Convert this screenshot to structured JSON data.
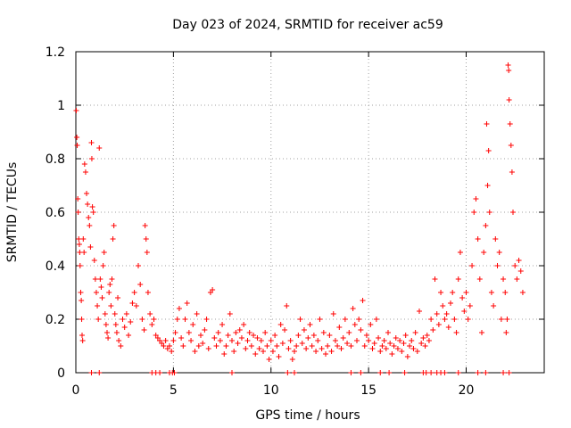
{
  "chart_data": {
    "type": "scatter",
    "title": "Day 023 of 2024, SRMTID for receiver ac59",
    "xlabel": "GPS time / hours",
    "ylabel": "SRMTID / TECUs",
    "xlim": [
      0,
      24
    ],
    "ylim": [
      0,
      1.2
    ],
    "xticks": [
      0,
      5,
      10,
      15,
      20
    ],
    "xtick_labels": [
      "0",
      "5",
      "10",
      "15",
      "20"
    ],
    "yticks": [
      0,
      0.2,
      0.4,
      0.6,
      0.8,
      1.0,
      1.2
    ],
    "ytick_labels": [
      "0",
      "0.2",
      "0.4",
      "0.6",
      "0.8",
      "1",
      "1.2"
    ],
    "grid": true,
    "marker": "+",
    "series": [
      {
        "name": "SRMTID",
        "color": "#ff0000",
        "points": [
          [
            0.02,
            0.98
          ],
          [
            0.05,
            0.88
          ],
          [
            0.07,
            0.85
          ],
          [
            0.1,
            0.65
          ],
          [
            0.12,
            0.6
          ],
          [
            0.15,
            0.5
          ],
          [
            0.18,
            0.48
          ],
          [
            0.2,
            0.45
          ],
          [
            0.22,
            0.4
          ],
          [
            0.25,
            0.3
          ],
          [
            0.28,
            0.27
          ],
          [
            0.3,
            0.2
          ],
          [
            0.32,
            0.14
          ],
          [
            0.35,
            0.12
          ],
          [
            0.38,
            0.5
          ],
          [
            0.42,
            0.45
          ],
          [
            0.45,
            0.78
          ],
          [
            0.5,
            0.75
          ],
          [
            0.55,
            0.67
          ],
          [
            0.6,
            0.63
          ],
          [
            0.65,
            0.58
          ],
          [
            0.7,
            0.55
          ],
          [
            0.75,
            0.47
          ],
          [
            0.8,
            0.86
          ],
          [
            0.82,
            0.8
          ],
          [
            0.85,
            0.62
          ],
          [
            0.9,
            0.6
          ],
          [
            0.95,
            0.42
          ],
          [
            1.0,
            0.35
          ],
          [
            1.05,
            0.3
          ],
          [
            1.1,
            0.25
          ],
          [
            1.15,
            0.2
          ],
          [
            1.2,
            0.84
          ],
          [
            1.25,
            0.35
          ],
          [
            1.3,
            0.32
          ],
          [
            1.35,
            0.28
          ],
          [
            1.4,
            0.4
          ],
          [
            1.45,
            0.45
          ],
          [
            1.5,
            0.22
          ],
          [
            1.55,
            0.18
          ],
          [
            1.6,
            0.15
          ],
          [
            1.65,
            0.13
          ],
          [
            1.7,
            0.3
          ],
          [
            1.75,
            0.33
          ],
          [
            1.8,
            0.25
          ],
          [
            1.85,
            0.35
          ],
          [
            1.9,
            0.5
          ],
          [
            1.95,
            0.55
          ],
          [
            2.0,
            0.22
          ],
          [
            2.05,
            0.18
          ],
          [
            2.1,
            0.15
          ],
          [
            2.15,
            0.28
          ],
          [
            2.2,
            0.12
          ],
          [
            2.3,
            0.1
          ],
          [
            2.4,
            0.2
          ],
          [
            2.5,
            0.17
          ],
          [
            2.6,
            0.22
          ],
          [
            2.7,
            0.14
          ],
          [
            2.8,
            0.19
          ],
          [
            2.9,
            0.26
          ],
          [
            3.0,
            0.3
          ],
          [
            3.1,
            0.25
          ],
          [
            3.2,
            0.4
          ],
          [
            3.3,
            0.33
          ],
          [
            3.4,
            0.2
          ],
          [
            3.5,
            0.16
          ],
          [
            3.55,
            0.55
          ],
          [
            3.6,
            0.5
          ],
          [
            3.65,
            0.45
          ],
          [
            3.7,
            0.3
          ],
          [
            3.8,
            0.22
          ],
          [
            3.9,
            0.18
          ],
          [
            4.0,
            0.2
          ],
          [
            4.1,
            0.14
          ],
          [
            4.2,
            0.13
          ],
          [
            4.3,
            0.12
          ],
          [
            4.4,
            0.11
          ],
          [
            4.5,
            0.1
          ],
          [
            4.6,
            0.12
          ],
          [
            4.7,
            0.09
          ],
          [
            4.8,
            0.1
          ],
          [
            4.9,
            0.08
          ],
          [
            5.0,
            0.12
          ],
          [
            5.1,
            0.15
          ],
          [
            5.2,
            0.2
          ],
          [
            5.3,
            0.24
          ],
          [
            5.4,
            0.13
          ],
          [
            5.5,
            0.1
          ],
          [
            5.6,
            0.2
          ],
          [
            5.7,
            0.26
          ],
          [
            5.8,
            0.15
          ],
          [
            5.9,
            0.12
          ],
          [
            6.0,
            0.18
          ],
          [
            6.1,
            0.08
          ],
          [
            6.2,
            0.22
          ],
          [
            6.3,
            0.1
          ],
          [
            6.4,
            0.14
          ],
          [
            6.5,
            0.11
          ],
          [
            6.6,
            0.16
          ],
          [
            6.7,
            0.2
          ],
          [
            6.8,
            0.09
          ],
          [
            6.9,
            0.3
          ],
          [
            7.0,
            0.31
          ],
          [
            7.1,
            0.13
          ],
          [
            7.2,
            0.1
          ],
          [
            7.3,
            0.15
          ],
          [
            7.4,
            0.12
          ],
          [
            7.5,
            0.18
          ],
          [
            7.6,
            0.07
          ],
          [
            7.7,
            0.1
          ],
          [
            7.8,
            0.14
          ],
          [
            7.9,
            0.22
          ],
          [
            8.0,
            0.12
          ],
          [
            8.1,
            0.08
          ],
          [
            8.2,
            0.15
          ],
          [
            8.3,
            0.11
          ],
          [
            8.4,
            0.16
          ],
          [
            8.5,
            0.13
          ],
          [
            8.6,
            0.18
          ],
          [
            8.7,
            0.09
          ],
          [
            8.8,
            0.12
          ],
          [
            8.9,
            0.15
          ],
          [
            9.0,
            0.1
          ],
          [
            9.1,
            0.14
          ],
          [
            9.2,
            0.07
          ],
          [
            9.3,
            0.13
          ],
          [
            9.4,
            0.09
          ],
          [
            9.5,
            0.12
          ],
          [
            9.6,
            0.08
          ],
          [
            9.7,
            0.15
          ],
          [
            9.8,
            0.1
          ],
          [
            9.9,
            0.05
          ],
          [
            10.0,
            0.12
          ],
          [
            10.1,
            0.08
          ],
          [
            10.2,
            0.14
          ],
          [
            10.3,
            0.1
          ],
          [
            10.4,
            0.06
          ],
          [
            10.5,
            0.18
          ],
          [
            10.6,
            0.11
          ],
          [
            10.7,
            0.16
          ],
          [
            10.8,
            0.25
          ],
          [
            10.9,
            0.09
          ],
          [
            11.0,
            0.12
          ],
          [
            11.1,
            0.05
          ],
          [
            11.2,
            0.08
          ],
          [
            11.3,
            0.1
          ],
          [
            11.4,
            0.14
          ],
          [
            11.5,
            0.2
          ],
          [
            11.6,
            0.11
          ],
          [
            11.7,
            0.16
          ],
          [
            11.8,
            0.09
          ],
          [
            11.9,
            0.13
          ],
          [
            12.0,
            0.18
          ],
          [
            12.1,
            0.1
          ],
          [
            12.2,
            0.14
          ],
          [
            12.3,
            0.08
          ],
          [
            12.4,
            0.12
          ],
          [
            12.5,
            0.2
          ],
          [
            12.6,
            0.09
          ],
          [
            12.7,
            0.15
          ],
          [
            12.8,
            0.07
          ],
          [
            12.9,
            0.1
          ],
          [
            13.0,
            0.14
          ],
          [
            13.1,
            0.08
          ],
          [
            13.2,
            0.22
          ],
          [
            13.3,
            0.12
          ],
          [
            13.4,
            0.1
          ],
          [
            13.5,
            0.17
          ],
          [
            13.6,
            0.09
          ],
          [
            13.7,
            0.13
          ],
          [
            13.8,
            0.2
          ],
          [
            13.9,
            0.11
          ],
          [
            14.0,
            0.15
          ],
          [
            14.1,
            0.1
          ],
          [
            14.2,
            0.24
          ],
          [
            14.3,
            0.18
          ],
          [
            14.4,
            0.12
          ],
          [
            14.5,
            0.2
          ],
          [
            14.6,
            0.16
          ],
          [
            14.7,
            0.27
          ],
          [
            14.8,
            0.1
          ],
          [
            14.9,
            0.14
          ],
          [
            15.0,
            0.12
          ],
          [
            15.1,
            0.18
          ],
          [
            15.2,
            0.09
          ],
          [
            15.3,
            0.11
          ],
          [
            15.4,
            0.2
          ],
          [
            15.5,
            0.13
          ],
          [
            15.6,
            0.08
          ],
          [
            15.7,
            0.1
          ],
          [
            15.8,
            0.12
          ],
          [
            15.9,
            0.09
          ],
          [
            16.0,
            0.15
          ],
          [
            16.1,
            0.11
          ],
          [
            16.2,
            0.07
          ],
          [
            16.3,
            0.1
          ],
          [
            16.4,
            0.13
          ],
          [
            16.5,
            0.09
          ],
          [
            16.6,
            0.12
          ],
          [
            16.7,
            0.08
          ],
          [
            16.8,
            0.11
          ],
          [
            16.9,
            0.14
          ],
          [
            17.0,
            0.06
          ],
          [
            17.1,
            0.1
          ],
          [
            17.2,
            0.12
          ],
          [
            17.3,
            0.09
          ],
          [
            17.4,
            0.15
          ],
          [
            17.5,
            0.08
          ],
          [
            17.6,
            0.23
          ],
          [
            17.7,
            0.11
          ],
          [
            17.8,
            0.13
          ],
          [
            17.9,
            0.1
          ],
          [
            18.0,
            0.14
          ],
          [
            18.1,
            0.12
          ],
          [
            18.2,
            0.2
          ],
          [
            18.3,
            0.16
          ],
          [
            18.4,
            0.35
          ],
          [
            18.5,
            0.22
          ],
          [
            18.6,
            0.18
          ],
          [
            18.7,
            0.3
          ],
          [
            18.8,
            0.25
          ],
          [
            18.9,
            0.2
          ],
          [
            19.0,
            0.22
          ],
          [
            19.1,
            0.17
          ],
          [
            19.2,
            0.26
          ],
          [
            19.3,
            0.3
          ],
          [
            19.4,
            0.2
          ],
          [
            19.5,
            0.15
          ],
          [
            19.6,
            0.35
          ],
          [
            19.7,
            0.45
          ],
          [
            19.8,
            0.28
          ],
          [
            19.9,
            0.23
          ],
          [
            20.0,
            0.3
          ],
          [
            20.1,
            0.2
          ],
          [
            20.2,
            0.25
          ],
          [
            20.3,
            0.4
          ],
          [
            20.4,
            0.6
          ],
          [
            20.5,
            0.65
          ],
          [
            20.6,
            0.5
          ],
          [
            20.7,
            0.35
          ],
          [
            20.8,
            0.15
          ],
          [
            20.9,
            0.45
          ],
          [
            21.0,
            0.55
          ],
          [
            21.05,
            0.93
          ],
          [
            21.1,
            0.7
          ],
          [
            21.15,
            0.83
          ],
          [
            21.2,
            0.6
          ],
          [
            21.3,
            0.3
          ],
          [
            21.4,
            0.25
          ],
          [
            21.5,
            0.5
          ],
          [
            21.6,
            0.4
          ],
          [
            21.7,
            0.45
          ],
          [
            21.8,
            0.2
          ],
          [
            21.9,
            0.35
          ],
          [
            22.0,
            0.3
          ],
          [
            22.05,
            0.15
          ],
          [
            22.1,
            0.2
          ],
          [
            22.15,
            1.15
          ],
          [
            22.18,
            1.13
          ],
          [
            22.2,
            1.02
          ],
          [
            22.25,
            0.93
          ],
          [
            22.3,
            0.85
          ],
          [
            22.35,
            0.75
          ],
          [
            22.4,
            0.6
          ],
          [
            22.5,
            0.4
          ],
          [
            22.6,
            0.35
          ],
          [
            22.7,
            0.42
          ],
          [
            22.8,
            0.38
          ],
          [
            22.9,
            0.3
          ],
          [
            0.8,
            0.0
          ],
          [
            1.2,
            0.0
          ],
          [
            3.9,
            0.0
          ],
          [
            4.1,
            0.0
          ],
          [
            4.3,
            0.0
          ],
          [
            4.8,
            0.0
          ],
          [
            4.95,
            0.0
          ],
          [
            5.05,
            0.0
          ],
          [
            8.0,
            0.0
          ],
          [
            10.85,
            0.0
          ],
          [
            11.2,
            0.0
          ],
          [
            14.1,
            0.0
          ],
          [
            14.6,
            0.0
          ],
          [
            15.6,
            0.0
          ],
          [
            16.05,
            0.0
          ],
          [
            16.85,
            0.0
          ],
          [
            17.8,
            0.0
          ],
          [
            17.95,
            0.0
          ],
          [
            18.2,
            0.0
          ],
          [
            18.5,
            0.0
          ],
          [
            18.7,
            0.0
          ],
          [
            18.9,
            0.0
          ],
          [
            19.6,
            0.0
          ],
          [
            20.6,
            0.0
          ],
          [
            21.0,
            0.0
          ],
          [
            21.9,
            0.0
          ],
          [
            22.2,
            0.0
          ]
        ]
      }
    ]
  }
}
